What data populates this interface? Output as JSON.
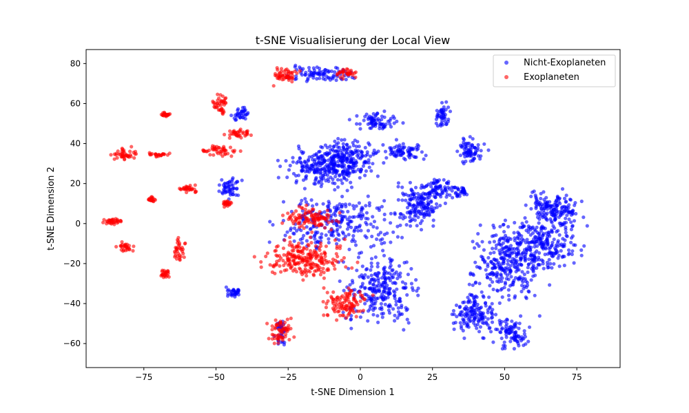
{
  "chart_data": {
    "type": "scatter",
    "title": "t-SNE Visualisierung der Local View",
    "xlabel": "t-SNE Dimension 1",
    "ylabel": "t-SNE Dimension 2",
    "xlim": [
      -95,
      90
    ],
    "ylim": [
      -72,
      87
    ],
    "xticks": [
      -75,
      -50,
      -25,
      0,
      25,
      50,
      75
    ],
    "yticks": [
      -60,
      -40,
      -20,
      0,
      20,
      40,
      60,
      80
    ],
    "grid": false,
    "legend": "top-right",
    "point_opacity": 0.6,
    "series": [
      {
        "name": "Nicht-Exoplaneten",
        "color": "#0000ff",
        "clusters": [
          {
            "x": [
              -30,
              5
            ],
            "y": [
              15,
              40
            ]
          },
          {
            "x": [
              -20,
              10
            ],
            "y": [
              20,
              45
            ]
          },
          {
            "x": [
              -35,
              20
            ],
            "y": [
              -20,
              20
            ]
          },
          {
            "x": [
              -10,
              25
            ],
            "y": [
              -55,
              -10
            ]
          },
          {
            "x": [
              -5,
              15
            ],
            "y": [
              45,
              57
            ]
          },
          {
            "x": [
              5,
              25
            ],
            "y": [
              30,
              42
            ]
          },
          {
            "x": [
              10,
              30
            ],
            "y": [
              -5,
              25
            ]
          },
          {
            "x": [
              20,
              35
            ],
            "y": [
              10,
              25
            ]
          },
          {
            "x": [
              25,
              32
            ],
            "y": [
              45,
              63
            ]
          },
          {
            "x": [
              31,
              45
            ],
            "y": [
              28,
              45
            ]
          },
          {
            "x": [
              32,
              38
            ],
            "y": [
              12,
              20
            ]
          },
          {
            "x": [
              35,
              65
            ],
            "y": [
              -45,
              5
            ]
          },
          {
            "x": [
              45,
              80
            ],
            "y": [
              -30,
              10
            ]
          },
          {
            "x": [
              55,
              80
            ],
            "y": [
              -5,
              20
            ]
          },
          {
            "x": [
              30,
              50
            ],
            "y": [
              -60,
              -30
            ]
          },
          {
            "x": [
              45,
              60
            ],
            "y": [
              -65,
              -45
            ]
          },
          {
            "x": [
              -30,
              2
            ],
            "y": [
              70,
              80
            ]
          },
          {
            "x": [
              -45,
              -38
            ],
            "y": [
              50,
              60
            ]
          },
          {
            "x": [
              -50,
              -40
            ],
            "y": [
              10,
              25
            ]
          },
          {
            "x": [
              -48,
              -40
            ],
            "y": [
              -38,
              -30
            ]
          },
          {
            "x": [
              -30,
              -25
            ],
            "y": [
              -62,
              -45
            ]
          }
        ]
      },
      {
        "name": "Exoplaneten",
        "color": "#ff0000",
        "clusters": [
          {
            "x": [
              -38,
              0
            ],
            "y": [
              -30,
              -5
            ]
          },
          {
            "x": [
              -30,
              -5
            ],
            "y": [
              -5,
              10
            ]
          },
          {
            "x": [
              -15,
              5
            ],
            "y": [
              -50,
              -30
            ]
          },
          {
            "x": [
              -33,
              -22
            ],
            "y": [
              -62,
              -45
            ]
          },
          {
            "x": [
              -88,
              -75
            ],
            "y": [
              30,
              39
            ]
          },
          {
            "x": [
              -75,
              -65
            ],
            "y": [
              33,
              36
            ]
          },
          {
            "x": [
              -58,
              -40
            ],
            "y": [
              33,
              40
            ]
          },
          {
            "x": [
              -52,
              -45
            ],
            "y": [
              52,
              67
            ]
          },
          {
            "x": [
              -48,
              -35
            ],
            "y": [
              42,
              48
            ]
          },
          {
            "x": [
              -70,
              -65
            ],
            "y": [
              53,
              56
            ]
          },
          {
            "x": [
              -90,
              -80
            ],
            "y": [
              -2,
              4
            ]
          },
          {
            "x": [
              -85,
              -78
            ],
            "y": [
              -15,
              -8
            ]
          },
          {
            "x": [
              -75,
              -70
            ],
            "y": [
              10,
              14
            ]
          },
          {
            "x": [
              -65,
              -55
            ],
            "y": [
              15,
              20
            ]
          },
          {
            "x": [
              -65,
              -60
            ],
            "y": [
              -20,
              -5
            ]
          },
          {
            "x": [
              -70,
              -65
            ],
            "y": [
              -28,
              -22
            ]
          },
          {
            "x": [
              -48,
              -44
            ],
            "y": [
              8,
              12
            ]
          },
          {
            "x": [
              -33,
              -20
            ],
            "y": [
              68,
              80
            ]
          },
          {
            "x": [
              -10,
              0
            ],
            "y": [
              72,
              78
            ]
          }
        ]
      }
    ]
  }
}
